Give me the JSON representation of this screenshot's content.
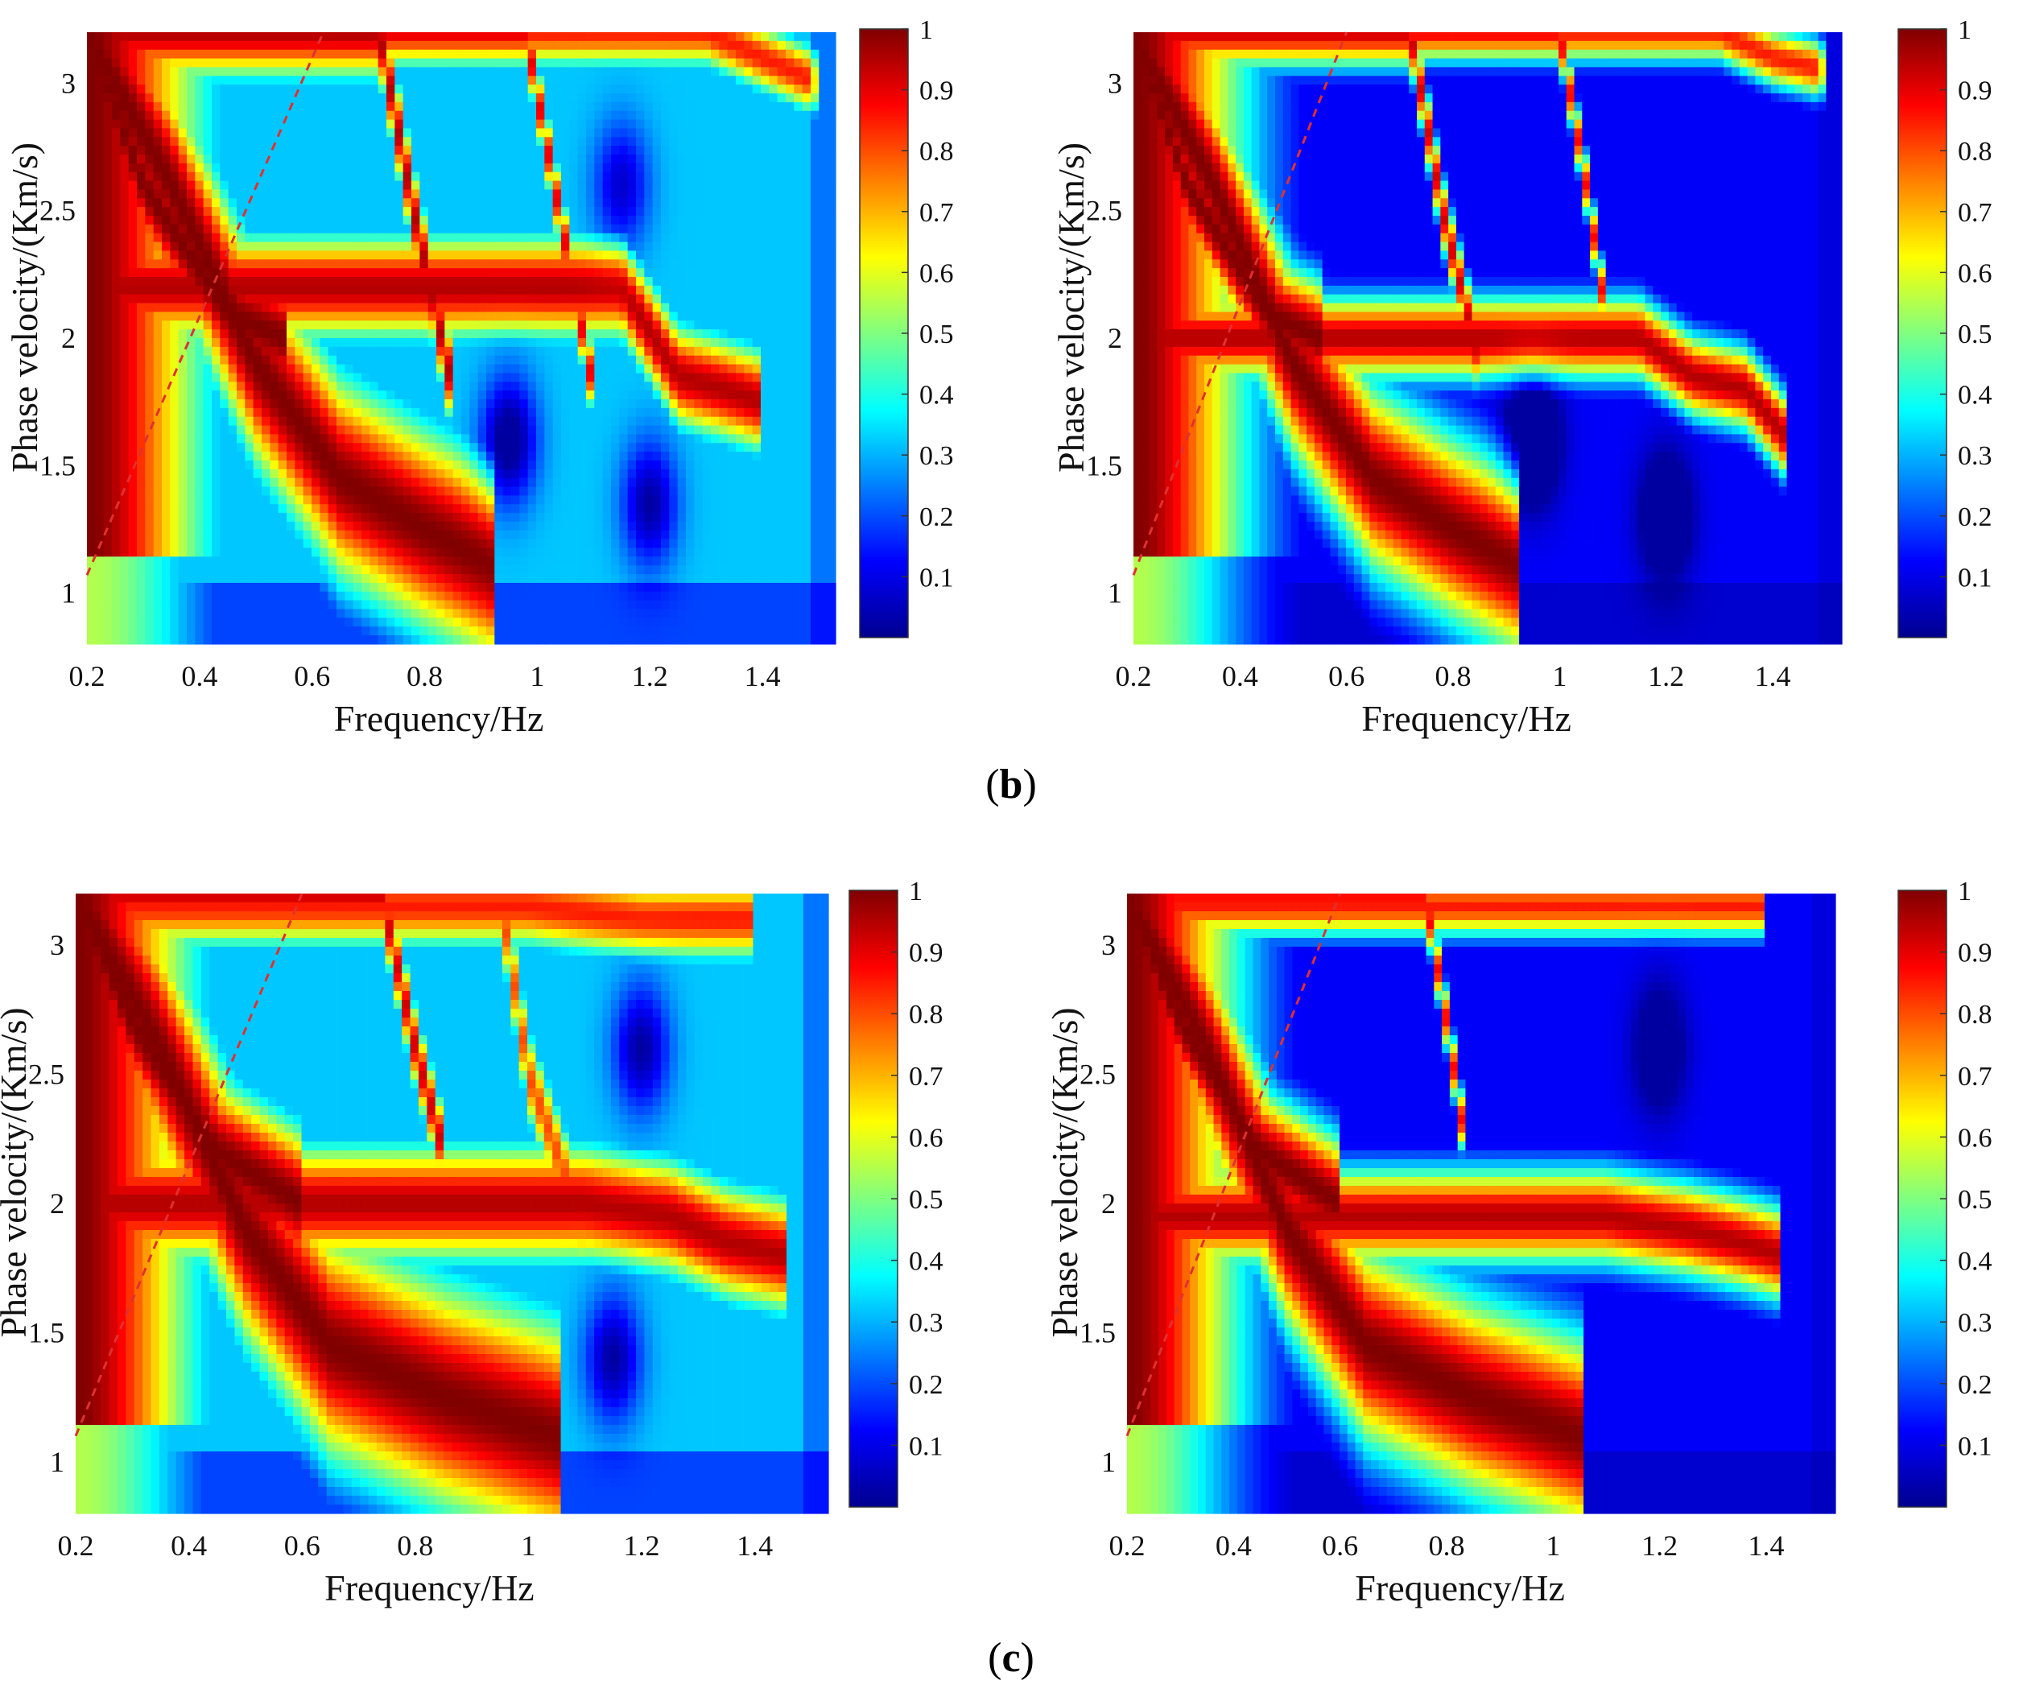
{
  "colormap": [
    "#00008f",
    "#0000ff",
    "#0080ff",
    "#00ffff",
    "#80ff80",
    "#ffff00",
    "#ff8000",
    "#ff0000",
    "#800000"
  ],
  "captions": [
    {
      "open": "(",
      "letter": "b",
      "close": ")"
    },
    {
      "open": "(",
      "letter": "c",
      "close": ")"
    }
  ],
  "chart_data": [
    {
      "type": "heatmap",
      "panel": "b-left",
      "xlabel": "Frequency/Hz",
      "ylabel": "Phase velocity/(Km/s)",
      "xlim": [
        0.2,
        1.53
      ],
      "ylim": [
        0.8,
        3.2
      ],
      "xticks": [
        0.2,
        0.4,
        0.6,
        0.8,
        1,
        1.2,
        1.4
      ],
      "xtick_labels": [
        "0.2",
        "0.4",
        "0.6",
        "0.8",
        "1",
        "1.2",
        "1.4"
      ],
      "yticks": [
        1,
        1.5,
        2,
        2.5,
        3
      ],
      "ytick_labels": [
        "1",
        "1.5",
        "2",
        "2.5",
        "3"
      ],
      "colorbar": {
        "range": [
          0,
          1
        ],
        "ticks": [
          0.1,
          0.2,
          0.3,
          0.4,
          0.5,
          0.6,
          0.7,
          0.8,
          0.9,
          1
        ],
        "tick_labels": [
          "0.1",
          "0.2",
          "0.3",
          "0.4",
          "0.5",
          "0.6",
          "0.7",
          "0.8",
          "0.9",
          "1"
        ]
      },
      "reference_line": {
        "x": [
          0.2,
          0.62
        ],
        "y": [
          1.07,
          3.2
        ],
        "style": "dashed",
        "color": "#e03030"
      },
      "background": 0.32,
      "ridges": [
        {
          "f": [
            0.2,
            0.35,
            0.5,
            0.65,
            0.8,
            0.93
          ],
          "v": [
            3.2,
            2.6,
            1.9,
            1.45,
            1.25,
            1.1
          ],
          "amp": 1.0,
          "width": 0.18
        },
        {
          "f": [
            0.2,
            0.3,
            0.45,
            0.55
          ],
          "v": [
            3.2,
            2.6,
            2.1,
            2.0
          ],
          "amp": 1.0,
          "width": 0.12
        },
        {
          "f": [
            0.72,
            0.78,
            0.85
          ],
          "v": [
            3.2,
            2.5,
            1.8
          ],
          "amp": 0.95,
          "width": 0.08
        },
        {
          "f": [
            0.98,
            1.03,
            1.1
          ],
          "v": [
            3.2,
            2.6,
            1.8
          ],
          "amp": 0.9,
          "width": 0.06
        },
        {
          "f": [
            1.15,
            1.25,
            1.33,
            1.4
          ],
          "v": [
            2.2,
            1.85,
            1.8,
            1.75
          ],
          "amp": 0.95,
          "width": 0.09
        },
        {
          "f": [
            1.3,
            1.4,
            1.5
          ],
          "v": [
            3.2,
            3.1,
            3.0
          ],
          "amp": 0.85,
          "width": 0.06
        }
      ],
      "dips": [
        {
          "f": 0.95,
          "v": 1.6,
          "depth": 0.35
        },
        {
          "f": 1.2,
          "v": 1.35,
          "depth": 0.3
        },
        {
          "f": 1.15,
          "v": 2.6,
          "depth": 0.25
        }
      ]
    },
    {
      "type": "heatmap",
      "panel": "b-right",
      "xlabel": "Frequency/Hz",
      "ylabel": "Phase velocity/(Km/s)",
      "xlim": [
        0.2,
        1.53
      ],
      "ylim": [
        0.8,
        3.2
      ],
      "xticks": [
        0.2,
        0.4,
        0.6,
        0.8,
        1,
        1.2,
        1.4
      ],
      "xtick_labels": [
        "0.2",
        "0.4",
        "0.6",
        "0.8",
        "1",
        "1.2",
        "1.4"
      ],
      "yticks": [
        1,
        1.5,
        2,
        2.5,
        3
      ],
      "ytick_labels": [
        "1",
        "1.5",
        "2",
        "2.5",
        "3"
      ],
      "colorbar": {
        "range": [
          0,
          1
        ],
        "ticks": [
          0.1,
          0.2,
          0.3,
          0.4,
          0.5,
          0.6,
          0.7,
          0.8,
          0.9,
          1
        ],
        "tick_labels": [
          "0.1",
          "0.2",
          "0.3",
          "0.4",
          "0.5",
          "0.6",
          "0.7",
          "0.8",
          "0.9",
          "1"
        ]
      },
      "reference_line": {
        "x": [
          0.2,
          0.6
        ],
        "y": [
          1.07,
          3.2
        ],
        "style": "dashed",
        "color": "#e03030"
      },
      "background": 0.12,
      "ridges": [
        {
          "f": [
            0.2,
            0.35,
            0.5,
            0.65,
            0.8,
            0.93
          ],
          "v": [
            3.2,
            2.6,
            1.9,
            1.45,
            1.25,
            1.1
          ],
          "amp": 1.0,
          "width": 0.16
        },
        {
          "f": [
            0.2,
            0.3,
            0.45,
            0.55
          ],
          "v": [
            3.2,
            2.6,
            2.1,
            2.0
          ],
          "amp": 1.0,
          "width": 0.1
        },
        {
          "f": [
            0.72,
            0.78,
            0.85
          ],
          "v": [
            3.2,
            2.5,
            1.9
          ],
          "amp": 0.92,
          "width": 0.06
        },
        {
          "f": [
            1.0,
            1.05,
            1.1
          ],
          "v": [
            3.2,
            2.6,
            1.9
          ],
          "amp": 0.88,
          "width": 0.05
        },
        {
          "f": [
            1.15,
            1.25,
            1.35,
            1.43
          ],
          "v": [
            2.0,
            1.85,
            1.8,
            1.6
          ],
          "amp": 0.95,
          "width": 0.07
        },
        {
          "f": [
            1.3,
            1.4,
            1.5
          ],
          "v": [
            3.2,
            3.1,
            3.05
          ],
          "amp": 0.85,
          "width": 0.05
        }
      ],
      "dips": [
        {
          "f": 0.95,
          "v": 1.6,
          "depth": 0.3
        },
        {
          "f": 1.2,
          "v": 1.3,
          "depth": 0.25
        }
      ]
    },
    {
      "type": "heatmap",
      "panel": "c-left",
      "xlabel": "Frequency/Hz",
      "ylabel": "Phase velocity/(Km/s)",
      "xlim": [
        0.2,
        1.53
      ],
      "ylim": [
        0.8,
        3.2
      ],
      "xticks": [
        0.2,
        0.4,
        0.6,
        0.8,
        1,
        1.2,
        1.4
      ],
      "xtick_labels": [
        "0.2",
        "0.4",
        "0.6",
        "0.8",
        "1",
        "1.2",
        "1.4"
      ],
      "yticks": [
        1,
        1.5,
        2,
        2.5,
        3
      ],
      "ytick_labels": [
        "1",
        "1.5",
        "2",
        "2.5",
        "3"
      ],
      "colorbar": {
        "range": [
          0,
          1
        ],
        "ticks": [
          0.1,
          0.2,
          0.3,
          0.4,
          0.5,
          0.6,
          0.7,
          0.8,
          0.9,
          1
        ],
        "tick_labels": [
          "0.1",
          "0.2",
          "0.3",
          "0.4",
          "0.5",
          "0.6",
          "0.7",
          "0.8",
          "0.9",
          "1"
        ]
      },
      "reference_line": {
        "x": [
          0.2,
          0.6
        ],
        "y": [
          1.1,
          3.2
        ],
        "style": "dashed",
        "color": "#e03030"
      },
      "background": 0.32,
      "ridges": [
        {
          "f": [
            0.2,
            0.35,
            0.5,
            0.65,
            0.85,
            1.05
          ],
          "v": [
            3.2,
            2.6,
            1.9,
            1.45,
            1.25,
            1.1
          ],
          "amp": 1.0,
          "width": 0.2
        },
        {
          "f": [
            0.2,
            0.3,
            0.45,
            0.6
          ],
          "v": [
            3.2,
            2.7,
            2.2,
            2.0
          ],
          "amp": 1.0,
          "width": 0.13
        },
        {
          "f": [
            0.74,
            0.8,
            0.85
          ],
          "v": [
            3.2,
            2.6,
            2.2
          ],
          "amp": 0.92,
          "width": 0.07
        },
        {
          "f": [
            0.95,
            1.0,
            1.1
          ],
          "v": [
            3.2,
            2.5,
            1.9
          ],
          "amp": 0.8,
          "width": 0.08
        },
        {
          "f": [
            1.1,
            1.25,
            1.35,
            1.45
          ],
          "v": [
            2.0,
            1.95,
            1.85,
            1.8
          ],
          "amp": 0.95,
          "width": 0.1
        },
        {
          "f": [
            1.0,
            1.2,
            1.4
          ],
          "v": [
            3.15,
            3.1,
            3.1
          ],
          "amp": 0.85,
          "width": 0.07
        }
      ],
      "dips": [
        {
          "f": 1.2,
          "v": 2.6,
          "depth": 0.3
        },
        {
          "f": 1.15,
          "v": 1.4,
          "depth": 0.3
        }
      ]
    },
    {
      "type": "heatmap",
      "panel": "c-right",
      "xlabel": "Frequency/Hz",
      "ylabel": "Phase velocity/(Km/s)",
      "xlim": [
        0.2,
        1.53
      ],
      "ylim": [
        0.8,
        3.2
      ],
      "xticks": [
        0.2,
        0.4,
        0.6,
        0.8,
        1,
        1.2,
        1.4
      ],
      "xtick_labels": [
        "0.2",
        "0.4",
        "0.6",
        "0.8",
        "1",
        "1.2",
        "1.4"
      ],
      "yticks": [
        1,
        1.5,
        2,
        2.5,
        3
      ],
      "ytick_labels": [
        "1",
        "1.5",
        "2",
        "2.5",
        "3"
      ],
      "colorbar": {
        "range": [
          0,
          1
        ],
        "ticks": [
          0.1,
          0.2,
          0.3,
          0.4,
          0.5,
          0.6,
          0.7,
          0.8,
          0.9,
          1
        ],
        "tick_labels": [
          "0.1",
          "0.2",
          "0.3",
          "0.4",
          "0.5",
          "0.6",
          "0.7",
          "0.8",
          "0.9",
          "1"
        ]
      },
      "reference_line": {
        "x": [
          0.2,
          0.6
        ],
        "y": [
          1.1,
          3.2
        ],
        "style": "dashed",
        "color": "#e03030"
      },
      "background": 0.12,
      "ridges": [
        {
          "f": [
            0.2,
            0.35,
            0.5,
            0.65,
            0.85,
            1.05
          ],
          "v": [
            3.2,
            2.6,
            1.9,
            1.45,
            1.25,
            1.1
          ],
          "amp": 1.0,
          "width": 0.17
        },
        {
          "f": [
            0.2,
            0.3,
            0.45,
            0.6
          ],
          "v": [
            3.2,
            2.7,
            2.2,
            2.0
          ],
          "amp": 1.0,
          "width": 0.11
        },
        {
          "f": [
            0.76,
            0.8,
            0.83
          ],
          "v": [
            3.2,
            2.7,
            2.3
          ],
          "amp": 0.88,
          "width": 0.05
        },
        {
          "f": [
            1.1,
            1.25,
            1.35,
            1.43
          ],
          "v": [
            1.95,
            1.9,
            1.85,
            1.8
          ],
          "amp": 0.95,
          "width": 0.08
        },
        {
          "f": [
            1.1,
            1.25,
            1.4
          ],
          "v": [
            3.15,
            3.15,
            3.15
          ],
          "amp": 0.85,
          "width": 0.05
        }
      ],
      "dips": [
        {
          "f": 1.2,
          "v": 2.6,
          "depth": 0.2
        }
      ]
    }
  ]
}
